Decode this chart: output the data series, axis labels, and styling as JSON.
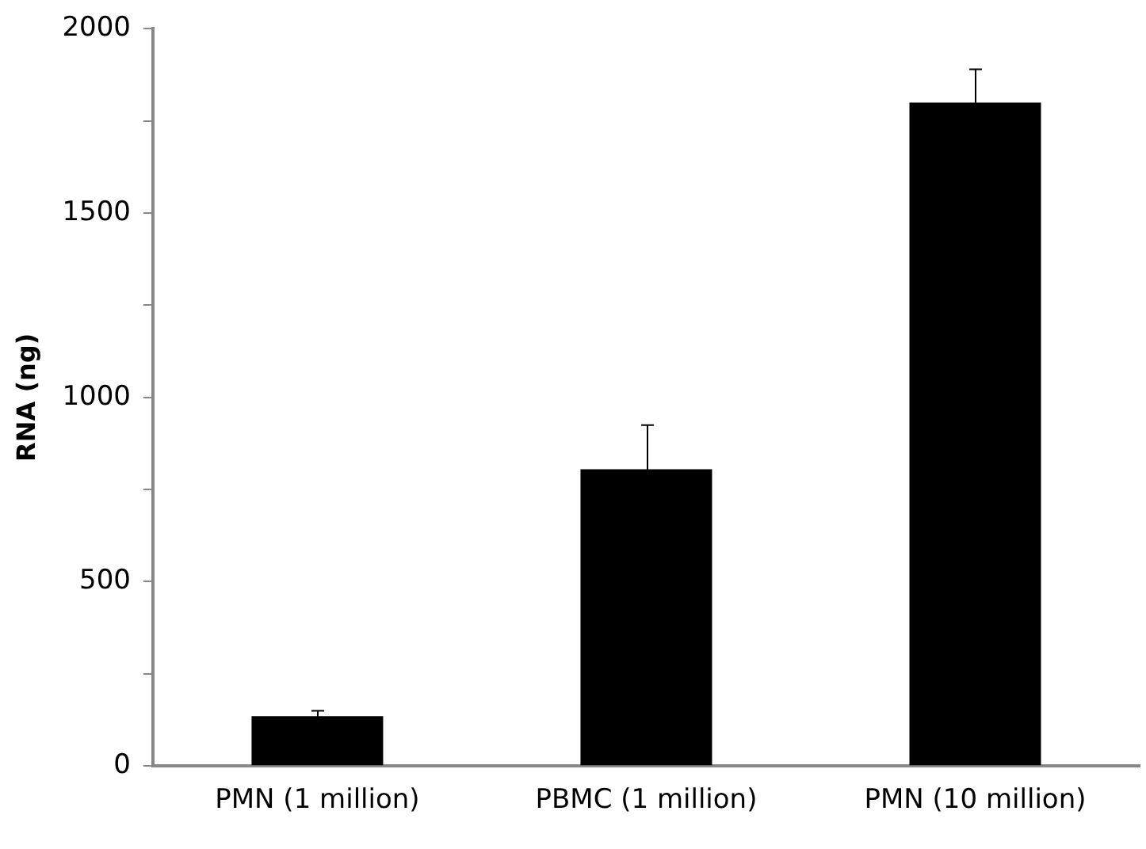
{
  "chart_data": {
    "type": "bar",
    "ylabel": "RNA (ng)",
    "categories": [
      "PMN (1 million)",
      "PBMC (1 million)",
      "PMN (10 million)"
    ],
    "values": [
      135,
      805,
      1800
    ],
    "errors": [
      15,
      120,
      90
    ],
    "color": "#000000",
    "ylim": [
      0,
      2000
    ],
    "yticks": [
      0,
      {
        "value": 250,
        "label": null
      },
      500,
      {
        "value": 750,
        "label": null
      },
      1000,
      {
        "value": 1250,
        "label": null
      },
      1500,
      {
        "value": 1750,
        "label": null
      },
      2000
    ],
    "grid": false
  }
}
